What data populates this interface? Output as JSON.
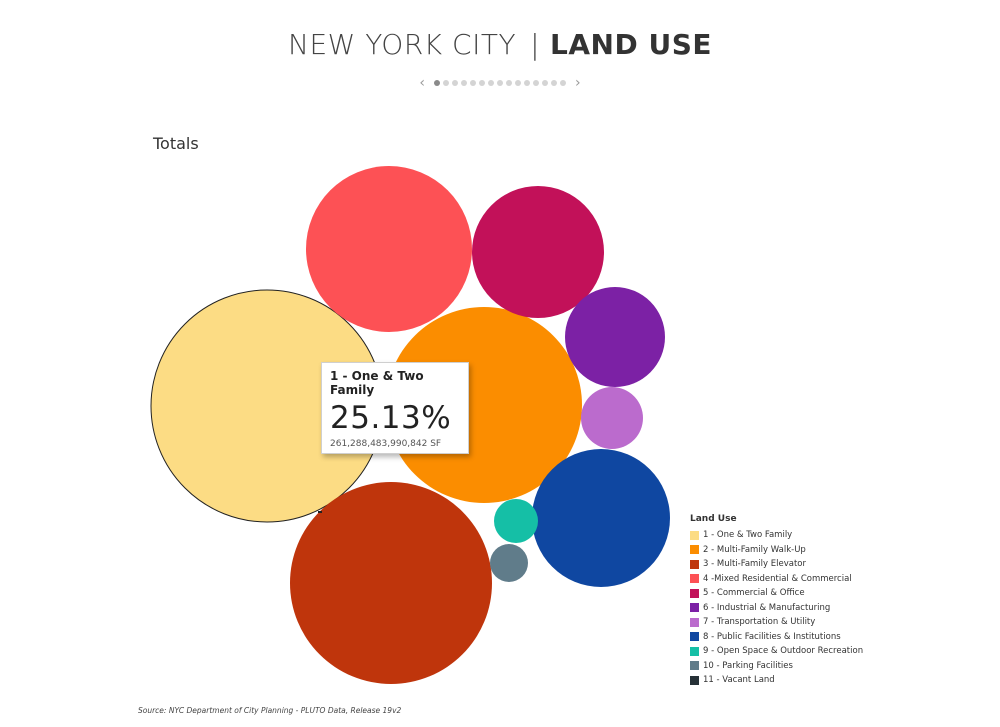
{
  "header": {
    "title_left": "NEW YORK CITY",
    "title_sep": "|",
    "title_right": "LAND USE",
    "prev_arrow": "‹",
    "next_arrow": "›",
    "page_count": 15,
    "active_page": 1
  },
  "section_label": "Totals",
  "tooltip": {
    "name": "1 - One & Two Family",
    "percent": "25.13%",
    "sf": "261,288,483,990,842 SF"
  },
  "chart_data": {
    "type": "bubble",
    "title": "Totals",
    "legend_title": "Land Use",
    "legend_position": "bottom-right",
    "series": [
      {
        "name": "1 - One & Two Family",
        "color": "#fcdc84",
        "share_percent": 25.13,
        "value_sf": "261,288,483,990,842"
      },
      {
        "name": "2 - Multi-Family Walk-Up",
        "color": "#fb8d00"
      },
      {
        "name": "3 - Multi-Family Elevator",
        "color": "#bf350c"
      },
      {
        "name": "4 -Mixed Residential & Commercial",
        "color": "#fd5155"
      },
      {
        "name": "5 - Commercial & Office",
        "color": "#c21159"
      },
      {
        "name": "6 - Industrial & Manufacturing",
        "color": "#7c21a5"
      },
      {
        "name": "7 - Transportation & Utility",
        "color": "#bb6bcd"
      },
      {
        "name": "8 - Public Facilities & Institutions",
        "color": "#0f47a1"
      },
      {
        "name": "9 - Open Space & Outdoor Recreation",
        "color": "#15bfa6"
      },
      {
        "name": "10 - Parking Facilities",
        "color": "#607c8a"
      },
      {
        "name": "11 - Vacant Land",
        "color": "#263137"
      }
    ]
  },
  "source": "Source: NYC Department of City Planning - PLUTO Data, Release 19v2"
}
